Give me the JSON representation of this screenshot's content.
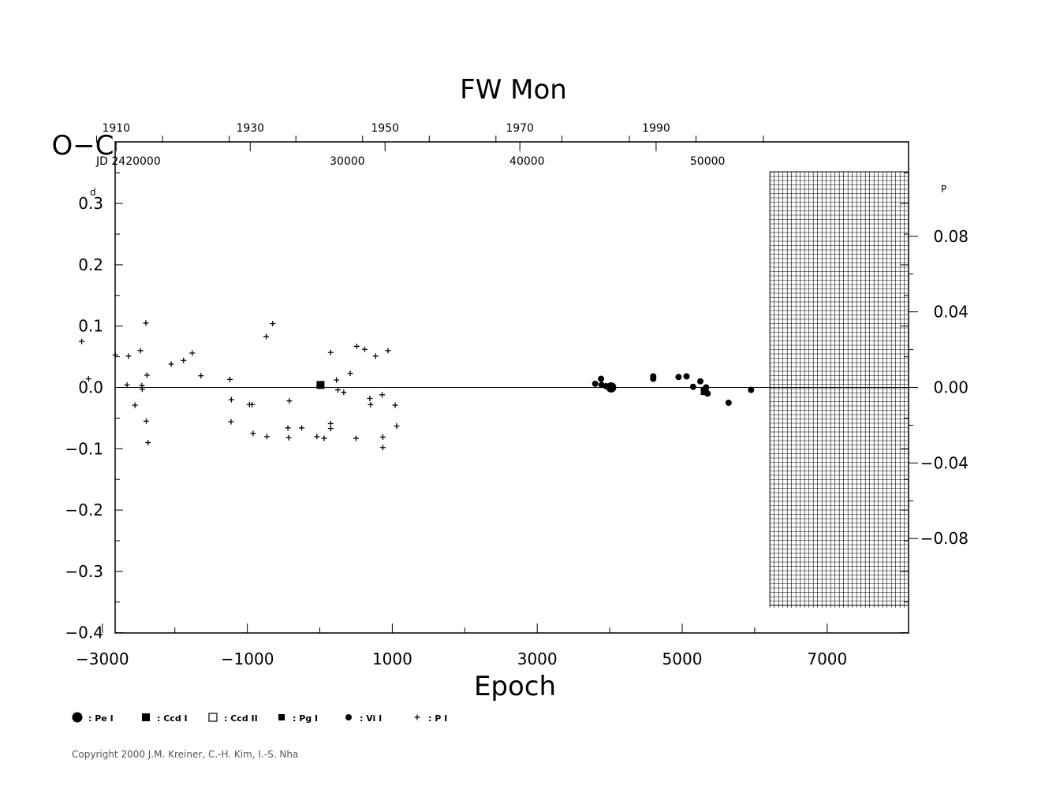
{
  "chart_data": {
    "type": "scatter",
    "title": "FW  Mon",
    "xlabel": "Epoch",
    "ylabel": "O−C",
    "y_unit_left": "d",
    "y_unit_right": "P",
    "xlim": [
      -3500,
      7100
    ],
    "ylim": [
      -0.4,
      0.4
    ],
    "x_ticks": [
      -3000,
      -1000,
      1000,
      3000,
      5000,
      7000
    ],
    "x_tick_labels": [
      "−3000",
      "−1000",
      "1000",
      "3000",
      "5000",
      "7000"
    ],
    "y_ticks": [
      0.3,
      0.2,
      0.1,
      0.0,
      -0.1,
      -0.2,
      -0.3,
      -0.4
    ],
    "y_tick_labels": [
      "0.3",
      "0.2",
      "0.1",
      "0.0",
      "−0.1",
      "−0.2",
      "−0.3",
      "−0.4"
    ],
    "right_ticks": [
      0.08,
      0.04,
      0.0,
      -0.04,
      -0.08
    ],
    "right_tick_labels": [
      "0.08",
      "0.04",
      "0.00",
      "−0.04",
      "−0.08"
    ],
    "right_scale_factor": 0.3246,
    "top_year_labels": [
      {
        "epoch": -2810,
        "label": "1910"
      },
      {
        "epoch": -960,
        "label": "1930"
      },
      {
        "epoch": 900,
        "label": "1950"
      },
      {
        "epoch": 2760,
        "label": "1970"
      },
      {
        "epoch": 4640,
        "label": "1990"
      }
    ],
    "top_year_minor_epochs": [
      -3080,
      -2170,
      -1250,
      -330,
      590,
      1510,
      2430,
      3340,
      4270,
      5190,
      6120
    ],
    "jd_labels": [
      {
        "epoch": -2640,
        "label": "JD  2420000"
      },
      {
        "epoch": 380,
        "label": "30000"
      },
      {
        "epoch": 2860,
        "label": "40000"
      },
      {
        "epoch": 5350,
        "label": "50000"
      }
    ],
    "future_region_start_epoch": 6210,
    "zero_line": true,
    "series": [
      {
        "name": ": P I",
        "marker": "plus",
        "points": [
          [
            -3285,
            0.075
          ],
          [
            -3190,
            0.014
          ],
          [
            -2820,
            0.053
          ],
          [
            -2640,
            0.051
          ],
          [
            -2660,
            0.004
          ],
          [
            -2550,
            -0.029
          ],
          [
            -2475,
            0.06
          ],
          [
            -2455,
            0.003
          ],
          [
            -2450,
            -0.003
          ],
          [
            -2400,
            0.105
          ],
          [
            -2395,
            -0.055
          ],
          [
            -2385,
            0.02
          ],
          [
            -2370,
            -0.09
          ],
          [
            -2050,
            0.038
          ],
          [
            -1880,
            0.044
          ],
          [
            -1760,
            0.056
          ],
          [
            -1640,
            0.019
          ],
          [
            -1240,
            0.013
          ],
          [
            -1220,
            -0.02
          ],
          [
            -1225,
            -0.056
          ],
          [
            -970,
            -0.028
          ],
          [
            -935,
            -0.028
          ],
          [
            -920,
            -0.075
          ],
          [
            -730,
            -0.08
          ],
          [
            -740,
            0.083
          ],
          [
            -650,
            0.104
          ],
          [
            -440,
            -0.066
          ],
          [
            -430,
            -0.082
          ],
          [
            -420,
            -0.022
          ],
          [
            -250,
            -0.066
          ],
          [
            -40,
            -0.08
          ],
          [
            60,
            -0.083
          ],
          [
            150,
            0.057
          ],
          [
            150,
            -0.059
          ],
          [
            150,
            -0.067
          ],
          [
            230,
            0.012
          ],
          [
            250,
            -0.004
          ],
          [
            330,
            -0.008
          ],
          [
            420,
            0.023
          ],
          [
            510,
            0.067
          ],
          [
            500,
            -0.083
          ],
          [
            620,
            0.062
          ],
          [
            690,
            -0.018
          ],
          [
            700,
            -0.028
          ],
          [
            770,
            0.051
          ],
          [
            860,
            -0.012
          ],
          [
            870,
            -0.098
          ],
          [
            870,
            -0.081
          ],
          [
            940,
            0.06
          ],
          [
            1040,
            -0.029
          ],
          [
            1060,
            -0.063
          ],
          [
            -10,
            0.003
          ]
        ]
      },
      {
        "name": ": Vi I",
        "marker": "dot",
        "points": [
          [
            3800,
            0.006
          ],
          [
            3880,
            0.014
          ],
          [
            3890,
            0.004
          ],
          [
            3950,
            0.002
          ],
          [
            4020,
            0.001
          ],
          [
            4600,
            0.014
          ],
          [
            4600,
            0.018
          ],
          [
            4950,
            0.017
          ],
          [
            5060,
            0.018
          ],
          [
            5150,
            0.001
          ],
          [
            5250,
            0.01
          ],
          [
            5300,
            -0.004
          ],
          [
            5330,
            0.0
          ],
          [
            5350,
            -0.01
          ],
          [
            5640,
            -0.025
          ],
          [
            5950,
            -0.004
          ]
        ]
      },
      {
        "name": ": Pe I",
        "marker": "big-dot",
        "points": [
          [
            4020,
            0.0
          ]
        ]
      },
      {
        "name": ": Ccd I",
        "marker": "square",
        "points": [
          [
            10,
            0.004
          ],
          [
            5310,
            -0.006
          ]
        ]
      },
      {
        "name": ": Ccd II",
        "marker": "open-square",
        "points": []
      },
      {
        "name": ": Pg I",
        "marker": "small-square",
        "points": []
      }
    ]
  },
  "legend": [
    {
      "marker": "big-dot",
      "label": ": Pe I"
    },
    {
      "marker": "square",
      "label": ": Ccd I"
    },
    {
      "marker": "open-square",
      "label": ": Ccd II"
    },
    {
      "marker": "small-square",
      "label": ": Pg I"
    },
    {
      "marker": "dot",
      "label": ": Vi I"
    },
    {
      "marker": "plus",
      "label": ": P I"
    }
  ],
  "copyright": "Copyright 2000 J.M. Kreiner, C.-H. Kim, I.-S. Nha"
}
